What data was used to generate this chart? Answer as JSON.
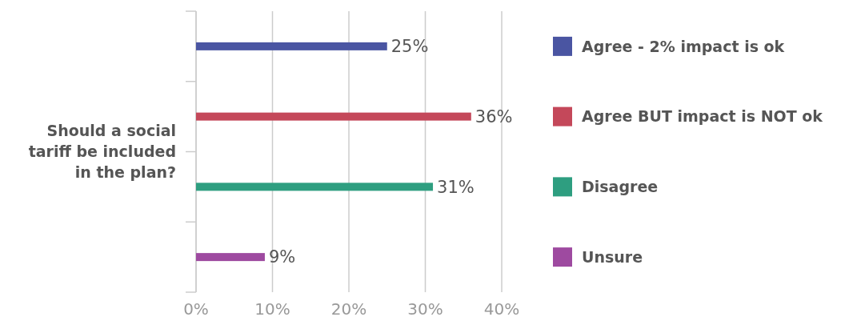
{
  "chart_data": {
    "type": "bar",
    "orientation": "horizontal",
    "stacked": true,
    "ylabel": "Should a social tariff be included in the plan?",
    "categories": [
      null,
      null,
      null,
      null
    ],
    "series": [
      {
        "name": "Agree - 2% impact is ok",
        "color": "#4a55a2",
        "values": [
          25,
          null,
          null,
          null
        ],
        "value_labels": [
          "25%",
          null,
          null,
          null
        ]
      },
      {
        "name": "Agree BUT impact is NOT ok",
        "color": "#c4485a",
        "values": [
          null,
          36,
          null,
          null
        ],
        "value_labels": [
          null,
          "36%",
          null,
          null
        ]
      },
      {
        "name": "Disagree",
        "color": "#2e9e80",
        "values": [
          null,
          null,
          31,
          null
        ],
        "value_labels": [
          null,
          null,
          "31%",
          null
        ]
      },
      {
        "name": "Unsure",
        "color": "#9e4aa0",
        "values": [
          null,
          null,
          null,
          9
        ],
        "value_labels": [
          null,
          null,
          null,
          "9%"
        ]
      }
    ],
    "xlim": [
      0,
      40
    ],
    "xticks": [
      {
        "value": 0,
        "label": "0%"
      },
      {
        "value": 10,
        "label": "10%"
      },
      {
        "value": 20,
        "label": "20%"
      },
      {
        "value": 30,
        "label": "30%"
      },
      {
        "value": 40,
        "label": "40%"
      }
    ],
    "grid": "x",
    "legend": "right"
  }
}
